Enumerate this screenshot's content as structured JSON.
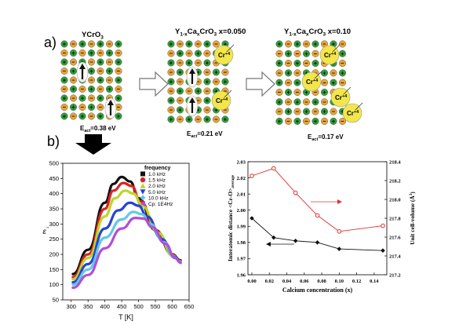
{
  "panel_a": {
    "label": "a)",
    "lattices": [
      {
        "title": "YCrO",
        "title_sub": "3",
        "energy_label": "E",
        "energy_sub": "act",
        "energy_value": "=0.38 eV",
        "cr_badges": []
      },
      {
        "title": "Y",
        "title_sub": "1-x",
        "title_mid": "Ca",
        "title_sub2": "x",
        "title_end": "CrO",
        "title_sub3": "3",
        "title_tail": " x=0.050",
        "energy_label": "E",
        "energy_sub": "act",
        "energy_value": "=0.21 eV",
        "cr_badges": [
          "Cr",
          "Cr"
        ],
        "cr_sup": "+4"
      },
      {
        "title": "Y",
        "title_sub": "1-x",
        "title_mid": "Ca",
        "title_sub2": "x",
        "title_end": "CrO",
        "title_sub3": "3",
        "title_tail": " x=0.10",
        "energy_label": "E",
        "energy_sub": "act",
        "energy_value": "=0.17 eV",
        "cr_badges": [
          "Cr",
          "Cr",
          "Cr",
          "Cr"
        ],
        "cr_sup": "+4"
      }
    ],
    "plus_sign": "+",
    "minus_sign": "−",
    "colors": {
      "plus": "#2f9e3a",
      "minus": "#e8a33a",
      "badge": "#f2e64a"
    }
  },
  "panel_b": {
    "label": "b)"
  },
  "chart_data": [
    {
      "type": "line",
      "ylabel": "ε''",
      "ylabel_main": "ε",
      "ylabel_sup": "''",
      "xlabel": "T [K]",
      "xlim": [
        275,
        650
      ],
      "ylim": [
        50,
        500
      ],
      "x_ticks": [
        300,
        350,
        400,
        450,
        500,
        550,
        600,
        650
      ],
      "y_ticks": [
        50,
        100,
        150,
        200,
        250,
        300,
        350,
        400,
        450,
        500
      ],
      "legend_title": "frequency",
      "legend_position": "top-right",
      "series": [
        {
          "name": "1.0 kHz",
          "color": "#111111",
          "marker": "square",
          "x": [
            305,
            350,
            400,
            425,
            450,
            475,
            500,
            550,
            600,
            625
          ],
          "y": [
            135,
            215,
            370,
            432,
            455,
            440,
            385,
            280,
            200,
            180
          ]
        },
        {
          "name": "1.5 kHz",
          "color": "#e02020",
          "marker": "circle",
          "x": [
            305,
            350,
            400,
            425,
            455,
            480,
            505,
            555,
            600,
            625
          ],
          "y": [
            125,
            200,
            350,
            410,
            435,
            425,
            375,
            275,
            198,
            178
          ]
        },
        {
          "name": "2.0 kHz",
          "color": "#b8d82a",
          "marker": "triangle-up",
          "x": [
            305,
            350,
            400,
            430,
            460,
            485,
            510,
            560,
            600,
            625
          ],
          "y": [
            118,
            188,
            325,
            385,
            410,
            400,
            360,
            270,
            196,
            177
          ]
        },
        {
          "name": "5.0 kHz",
          "color": "#2742d8",
          "marker": "triangle-down",
          "x": [
            305,
            350,
            400,
            440,
            475,
            500,
            525,
            570,
            605,
            625
          ],
          "y": [
            108,
            168,
            285,
            345,
            370,
            360,
            325,
            250,
            192,
            176
          ]
        },
        {
          "name": "10.0 kHz",
          "color": "#62c8e6",
          "marker": "diamond",
          "x": [
            305,
            350,
            400,
            450,
            485,
            510,
            535,
            575,
            605,
            625
          ],
          "y": [
            100,
            150,
            255,
            315,
            340,
            332,
            300,
            240,
            190,
            175
          ]
        },
        {
          "name": "Cp: 1E4Hz",
          "color": "#b04fd8",
          "marker": "triangle-left",
          "x": [
            305,
            350,
            400,
            450,
            490,
            515,
            540,
            580,
            608,
            625
          ],
          "y": [
            90,
            132,
            220,
            285,
            320,
            318,
            290,
            235,
            188,
            172
          ]
        }
      ]
    },
    {
      "type": "line",
      "xlabel": "Calcium concentration  (x)",
      "ylabel_left": "Interatomic distance  <Cr-O>",
      "ylabel_left_sub": "average",
      "ylabel_right": "Unit cell-volume (Å",
      "ylabel_right_sup": "3",
      "ylabel_right_end": ")",
      "xlim": [
        0.0,
        0.15
      ],
      "ylim_left": [
        1.96,
        2.03
      ],
      "ylim_right": [
        217.2,
        218.4
      ],
      "x_ticks": [
        "0.00",
        "0.02",
        "0.04",
        "0.06",
        "0.08",
        "0.10",
        "0.12",
        "0.14"
      ],
      "y_ticks_left": [
        "1.96",
        "1.97",
        "1.98",
        "1.99",
        "2.00",
        "2.01",
        "2.02",
        "2.03"
      ],
      "y_ticks_right": [
        "217.2",
        "217.4",
        "217.6",
        "217.8",
        "218.0",
        "218.2",
        "218.4"
      ],
      "series": [
        {
          "axis": "left",
          "color": "#111111",
          "marker": "diamond",
          "x": [
            0.0,
            0.025,
            0.05,
            0.075,
            0.1,
            0.15
          ],
          "y": [
            1.995,
            1.983,
            1.981,
            1.98,
            1.976,
            1.975
          ]
        },
        {
          "axis": "right",
          "color": "#e03030",
          "marker": "circle-open",
          "x": [
            0.0,
            0.025,
            0.05,
            0.075,
            0.1,
            0.15
          ],
          "y": [
            218.25,
            218.33,
            218.07,
            217.83,
            217.66,
            217.72
          ]
        }
      ]
    }
  ]
}
